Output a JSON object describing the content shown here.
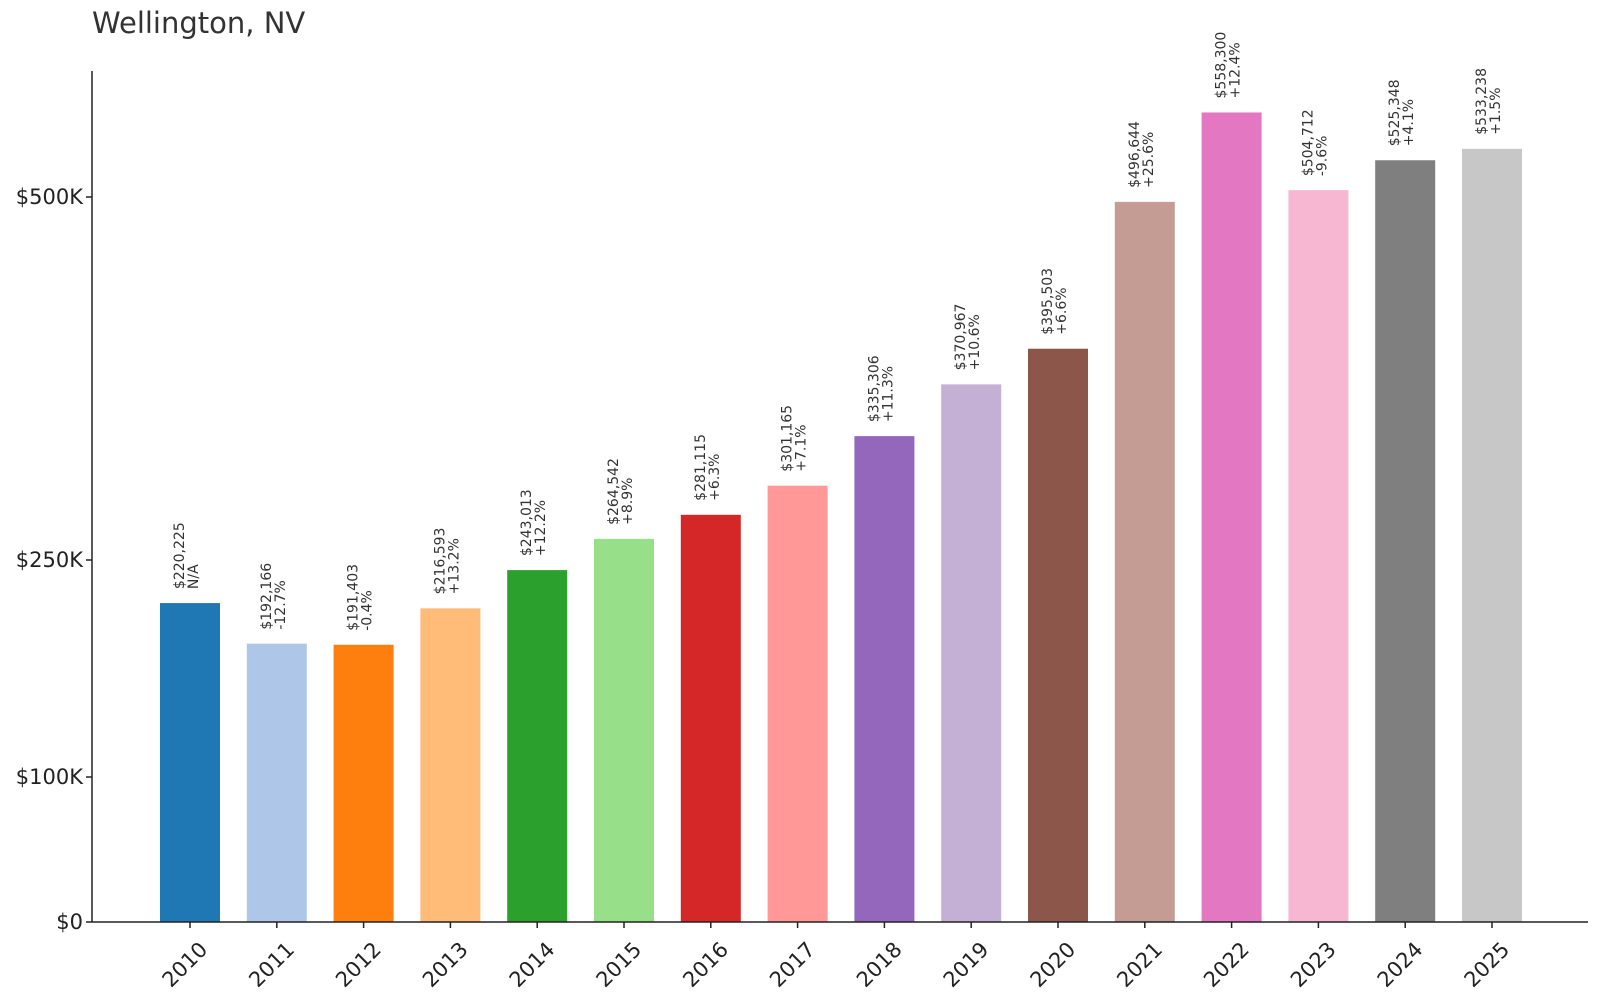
{
  "chart_data": {
    "type": "bar",
    "title": "Wellington, NV",
    "xlabel": "",
    "ylabel": "",
    "ylim": [
      0,
      590000
    ],
    "grid": false,
    "y_ticks": [
      {
        "value": 0,
        "label": "$0"
      },
      {
        "value": 100000,
        "label": "$100K"
      },
      {
        "value": 250000,
        "label": "$250K"
      },
      {
        "value": 500000,
        "label": "$500K"
      }
    ],
    "categories": [
      "2010",
      "2011",
      "2012",
      "2013",
      "2014",
      "2015",
      "2016",
      "2017",
      "2018",
      "2019",
      "2020",
      "2021",
      "2022",
      "2023",
      "2024",
      "2025"
    ],
    "values": [
      220225,
      192166,
      191403,
      216593,
      243013,
      264542,
      281115,
      301165,
      335306,
      370967,
      395503,
      496644,
      558300,
      504712,
      525348,
      533238
    ],
    "value_labels": [
      "$220,225",
      "$192,166",
      "$191,403",
      "$216,593",
      "$243,013",
      "$264,542",
      "$281,115",
      "$301,165",
      "$335,306",
      "$370,967",
      "$395,503",
      "$496,644",
      "$558,300",
      "$504,712",
      "$525,348",
      "$533,238"
    ],
    "change_labels": [
      "N/A",
      "-12.7%",
      "-0.4%",
      "+13.2%",
      "+12.2%",
      "+8.9%",
      "+6.3%",
      "+7.1%",
      "+11.3%",
      "+10.6%",
      "+6.6%",
      "+25.6%",
      "+12.4%",
      "-9.6%",
      "+4.1%",
      "+1.5%"
    ],
    "colors": [
      "#1f77b4",
      "#aec7e8",
      "#ff7f0e",
      "#ffbb78",
      "#2ca02c",
      "#98df8a",
      "#d62728",
      "#ff9896",
      "#9467bd",
      "#c5b0d5",
      "#8c564b",
      "#c49c94",
      "#e377c2",
      "#f7b6d2",
      "#7f7f7f",
      "#c7c7c7"
    ]
  }
}
